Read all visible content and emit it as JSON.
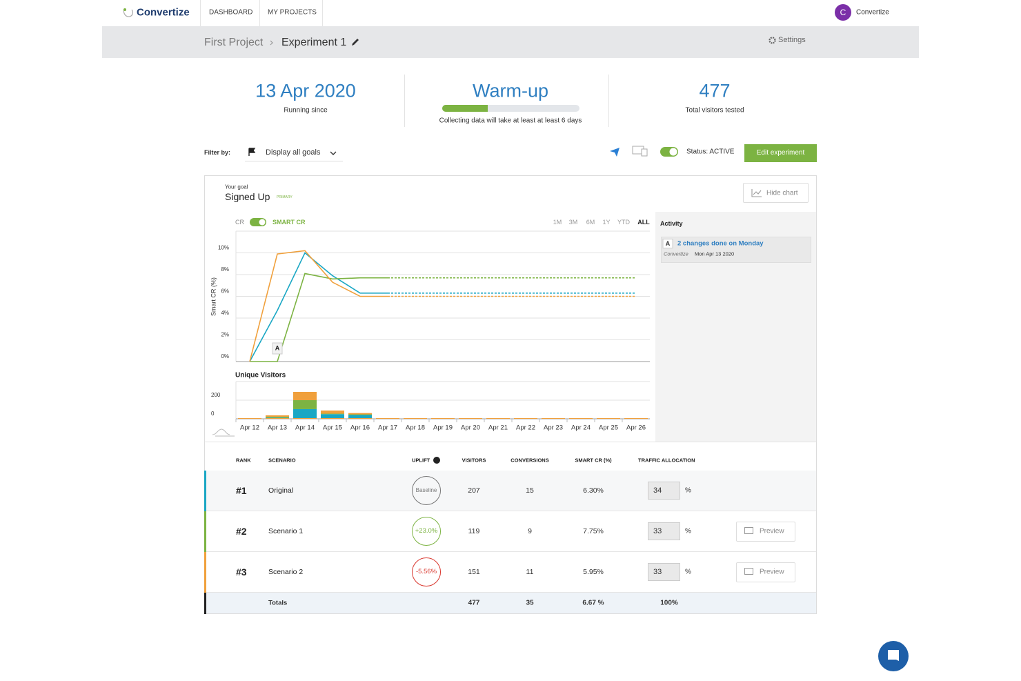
{
  "nav": {
    "brand": "Convertize",
    "links": [
      "DASHBOARD",
      "MY PROJECTS"
    ],
    "avatar": "C",
    "user": "Convertize"
  },
  "breadcrumb": {
    "project": "First Project",
    "experiment": "Experiment 1",
    "settings": "Settings"
  },
  "stats": {
    "running": {
      "value": "13 Apr 2020",
      "label": "Running since"
    },
    "warmup": {
      "value": "Warm-up",
      "label": "Collecting data will take at least at least 6 days",
      "progress": 33
    },
    "visitors": {
      "value": "477",
      "label": "Total visitors tested"
    }
  },
  "toolbar": {
    "filter_label": "Filter by:",
    "goal_filter": "Display all goals",
    "status": "Status: ACTIVE",
    "edit": "Edit experiment"
  },
  "goal": {
    "caption": "Your goal",
    "name": "Signed Up",
    "badge": "PRIMARY",
    "hide_chart": "Hide chart",
    "cr": "CR",
    "smart_cr": "SMART CR",
    "ranges": [
      "1M",
      "3M",
      "6M",
      "1Y",
      "YTD",
      "ALL"
    ],
    "active_range": "ALL"
  },
  "activity": {
    "title": "Activity",
    "items": [
      {
        "marker": "A",
        "text": "2 changes done on Monday",
        "author": "Convertize",
        "date": "Mon Apr 13 2020"
      }
    ]
  },
  "chart_data": [
    {
      "type": "line",
      "y_label": "Smart CR (%)",
      "ylim": [
        0,
        12
      ],
      "yticks": [
        {
          "value": 0,
          "label": "0%"
        },
        {
          "value": 2,
          "label": "2%"
        },
        {
          "value": 4,
          "label": "4%"
        },
        {
          "value": 6,
          "label": "6%"
        },
        {
          "value": 8,
          "label": "8%"
        },
        {
          "value": 10,
          "label": "10%"
        }
      ],
      "grid": true,
      "series": [
        {
          "color": "#1aa7c4",
          "values": [
            0,
            4.7,
            10.0,
            7.9,
            6.3,
            6.3,
            null,
            null,
            null,
            null,
            null,
            null,
            null,
            null,
            null
          ],
          "projection": [
            null,
            null,
            null,
            null,
            null,
            6.3,
            6.3,
            6.3,
            6.3,
            6.3,
            6.3,
            6.3,
            6.3,
            6.3,
            6.3
          ]
        },
        {
          "color": "#7cb342",
          "values": [
            0,
            0,
            8.1,
            7.6,
            7.7,
            7.7,
            null,
            null,
            null,
            null,
            null,
            null,
            null,
            null,
            null
          ],
          "projection": [
            null,
            null,
            null,
            null,
            null,
            7.7,
            7.7,
            7.7,
            7.7,
            7.7,
            7.7,
            7.7,
            7.7,
            7.7,
            7.7
          ]
        },
        {
          "color": "#f0a03c",
          "values": [
            0,
            9.9,
            10.2,
            7.3,
            6.0,
            6.0,
            null,
            null,
            null,
            null,
            null,
            null,
            null,
            null,
            null
          ],
          "projection": [
            null,
            null,
            null,
            null,
            null,
            6.0,
            6.0,
            6.0,
            6.0,
            6.0,
            6.0,
            6.0,
            6.0,
            6.0,
            6.0
          ]
        }
      ],
      "annotations": [
        {
          "text": "A",
          "index": 1
        }
      ]
    },
    {
      "type": "bar",
      "stacked": true,
      "title": "Unique Visitors",
      "ylim": [
        0,
        400
      ],
      "yticks": [
        0,
        200
      ],
      "grid": true,
      "categories": [
        "Apr 12",
        "Apr 13",
        "Apr 14",
        "Apr 15",
        "Apr 16",
        "Apr 17",
        "Apr 18",
        "Apr 19",
        "Apr 20",
        "Apr 21",
        "Apr 22",
        "Apr 23",
        "Apr 24",
        "Apr 25",
        "Apr 26"
      ],
      "series": [
        {
          "color": "#1aa7c4",
          "values": [
            0,
            12,
            104,
            50,
            41,
            0,
            0,
            0,
            0,
            0,
            0,
            0,
            0,
            0,
            0
          ]
        },
        {
          "color": "#7cb342",
          "values": [
            0,
            10,
            96,
            6,
            7,
            0,
            0,
            0,
            0,
            0,
            0,
            0,
            0,
            0,
            0
          ]
        },
        {
          "color": "#f0a03c",
          "values": [
            0,
            15,
            89,
            33,
            14,
            0,
            0,
            0,
            0,
            0,
            0,
            0,
            0,
            0,
            0
          ]
        }
      ]
    }
  ],
  "table": {
    "columns": [
      "RANK",
      "SCENARIO",
      "UPLIFT",
      "VISITORS",
      "CONVERSIONS",
      "SMART CR (%)",
      "TRAFFIC ALLOCATION"
    ],
    "rows": [
      {
        "rank": "#1",
        "scenario": "Original",
        "uplift": "Baseline",
        "visitors": 207,
        "conversions": 15,
        "smart_cr": "6.30%",
        "allocation": 34,
        "unit": "%",
        "color": "#1aa7c4",
        "uplift_color": "#777777",
        "background": "#f6f7f8"
      },
      {
        "rank": "#2",
        "scenario": "Scenario 1",
        "uplift": "+23.0%",
        "visitors": 119,
        "conversions": 9,
        "smart_cr": "7.75%",
        "allocation": 33,
        "unit": "%",
        "preview": "Preview",
        "color": "#7cb342",
        "uplift_color": "#7cb342",
        "background": "#ffffff"
      },
      {
        "rank": "#3",
        "scenario": "Scenario 2",
        "uplift": "-5.56%",
        "visitors": 151,
        "conversions": 11,
        "smart_cr": "5.95%",
        "allocation": 33,
        "unit": "%",
        "preview": "Preview",
        "color": "#f0a03c",
        "uplift_color": "#d9342b",
        "background": "#ffffff"
      }
    ],
    "totals": {
      "label": "Totals",
      "visitors": 477,
      "conversions": 35,
      "smart_cr": "6.67 %",
      "allocation": "100%",
      "color": "#222222"
    }
  }
}
